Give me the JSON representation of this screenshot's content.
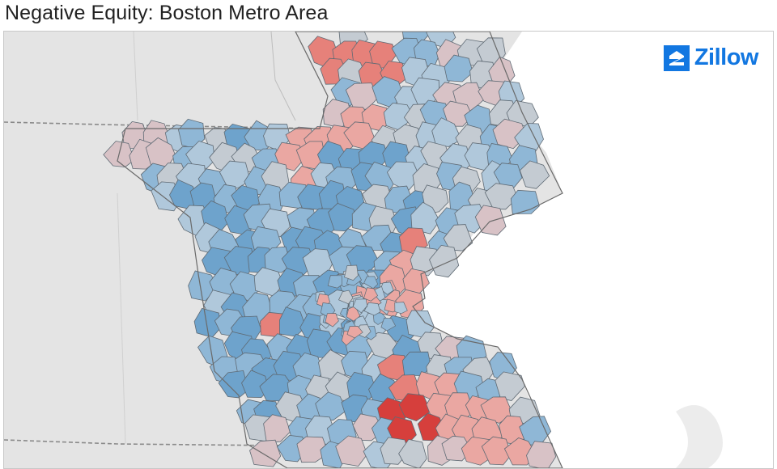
{
  "title": "Negative Equity: Boston Metro Area",
  "logo": {
    "text": "Zillow",
    "icon": "zillow-z-icon",
    "color": "#1277e1"
  },
  "map": {
    "colors": {
      "background": "#e6e6e6",
      "land": "#dcdcdc",
      "water": "#ffffff",
      "border": "#5f6a74",
      "blue_dark": "#6ea3cc",
      "blue_mid": "#8fb7d6",
      "blue_light": "#b0c8db",
      "neutral": "#c4cbd2",
      "pink_light": "#d8c2c6",
      "pink": "#eaa7a2",
      "red_mid": "#e6817a",
      "red_dark": "#d63f3c"
    }
  }
}
